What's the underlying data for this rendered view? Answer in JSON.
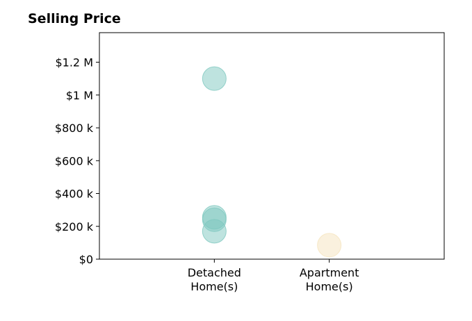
{
  "chart_data": {
    "type": "scatter",
    "title": "Selling Price",
    "xlabel": "",
    "ylabel": "",
    "categories": [
      "Detached Home(s)",
      "Apartment Home(s)"
    ],
    "category_lines": [
      [
        "Detached",
        "Home(s)"
      ],
      [
        "Apartment",
        "Home(s)"
      ]
    ],
    "yticks": [
      0,
      200000,
      400000,
      600000,
      800000,
      1000000,
      1200000
    ],
    "ytick_labels": [
      "$0",
      "$200 k",
      "$400 k",
      "$600 k",
      "$800 k",
      "$1 M",
      "$1.2 M"
    ],
    "ylim": [
      0,
      1380000
    ],
    "xlim": [
      -1,
      2
    ],
    "grid": false,
    "legend": "none",
    "series": [
      {
        "category": "Detached Home(s)",
        "color": "#7ec8bf",
        "values": [
          1100000,
          255000,
          240000,
          170000
        ]
      },
      {
        "category": "Apartment Home(s)",
        "color": "#f5e3bd",
        "values": [
          85000
        ]
      }
    ]
  }
}
